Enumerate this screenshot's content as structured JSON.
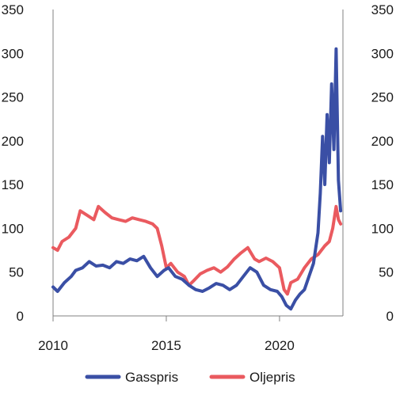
{
  "chart_data": {
    "type": "line",
    "title": "",
    "xlabel": "",
    "ylabel": "",
    "xlim": [
      2010,
      2022.8
    ],
    "ylim": [
      0,
      350
    ],
    "y_ticks": [
      0,
      50,
      100,
      150,
      200,
      250,
      300,
      350
    ],
    "y_tick_labels": [
      "0",
      "50",
      "100",
      "150",
      "200",
      "250",
      "300",
      "350"
    ],
    "x_ticks": [
      2010,
      2015,
      2020
    ],
    "x_tick_labels": [
      "2010",
      "2015",
      "2020"
    ],
    "grid": "none",
    "legend_position": "bottom",
    "series": [
      {
        "name": "Gasspris",
        "color": "#3a4fa5",
        "x": [
          2010.0,
          2010.2,
          2010.5,
          2010.8,
          2011.0,
          2011.3,
          2011.6,
          2011.9,
          2012.2,
          2012.5,
          2012.8,
          2013.1,
          2013.4,
          2013.7,
          2014.0,
          2014.3,
          2014.6,
          2014.9,
          2015.1,
          2015.4,
          2015.7,
          2016.0,
          2016.3,
          2016.6,
          2016.9,
          2017.2,
          2017.5,
          2017.8,
          2018.1,
          2018.4,
          2018.7,
          2019.0,
          2019.3,
          2019.6,
          2019.9,
          2020.1,
          2020.3,
          2020.5,
          2020.7,
          2020.9,
          2021.1,
          2021.3,
          2021.5,
          2021.7,
          2021.8,
          2021.9,
          2022.0,
          2022.1,
          2022.2,
          2022.3,
          2022.4,
          2022.5,
          2022.6,
          2022.7
        ],
        "values": [
          33,
          28,
          38,
          45,
          52,
          55,
          62,
          57,
          58,
          55,
          62,
          60,
          65,
          63,
          68,
          55,
          45,
          52,
          55,
          45,
          42,
          35,
          30,
          28,
          32,
          37,
          35,
          30,
          35,
          45,
          55,
          50,
          35,
          30,
          28,
          22,
          12,
          8,
          18,
          25,
          30,
          45,
          60,
          95,
          140,
          205,
          150,
          230,
          175,
          265,
          190,
          305,
          155,
          120
        ]
      },
      {
        "name": "Oljepris",
        "color": "#ea5a5f",
        "x": [
          2010.0,
          2010.2,
          2010.4,
          2010.7,
          2011.0,
          2011.2,
          2011.5,
          2011.8,
          2012.0,
          2012.3,
          2012.6,
          2012.9,
          2013.2,
          2013.5,
          2013.8,
          2014.1,
          2014.4,
          2014.6,
          2014.8,
          2015.0,
          2015.2,
          2015.5,
          2015.8,
          2016.0,
          2016.2,
          2016.5,
          2016.8,
          2017.1,
          2017.4,
          2017.7,
          2018.0,
          2018.3,
          2018.6,
          2018.9,
          2019.1,
          2019.4,
          2019.7,
          2020.0,
          2020.2,
          2020.35,
          2020.5,
          2020.8,
          2021.1,
          2021.4,
          2021.7,
          2022.0,
          2022.2,
          2022.35,
          2022.5,
          2022.6,
          2022.7
        ],
        "values": [
          78,
          75,
          85,
          90,
          100,
          120,
          115,
          110,
          125,
          118,
          112,
          110,
          108,
          112,
          110,
          108,
          105,
          100,
          80,
          55,
          60,
          50,
          45,
          35,
          40,
          48,
          52,
          55,
          50,
          56,
          65,
          72,
          78,
          65,
          62,
          66,
          62,
          55,
          30,
          25,
          38,
          42,
          55,
          65,
          70,
          80,
          85,
          100,
          125,
          110,
          105
        ]
      }
    ]
  }
}
